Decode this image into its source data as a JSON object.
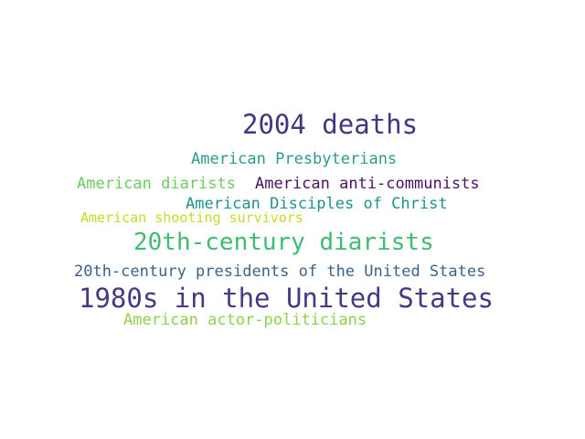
{
  "words": [
    {
      "text": "2004 deaths",
      "color": "#46347e"
    },
    {
      "text": "American Presbyterians",
      "color": "#2a9a89"
    },
    {
      "text": "American diarists",
      "color": "#6ccb5f"
    },
    {
      "text": "American anti-communists",
      "color": "#4b1260"
    },
    {
      "text": "American Disciples of Christ",
      "color": "#24908c"
    },
    {
      "text": "American shooting survivors",
      "color": "#c2dc2a"
    },
    {
      "text": "20th-century diarists",
      "color": "#3fbc73"
    },
    {
      "text": "20th-century presidents of the United States",
      "color": "#39638d"
    },
    {
      "text": "1980s in the United States",
      "color": "#443a83"
    },
    {
      "text": "American actor-politicians",
      "color": "#8dd14c"
    }
  ]
}
